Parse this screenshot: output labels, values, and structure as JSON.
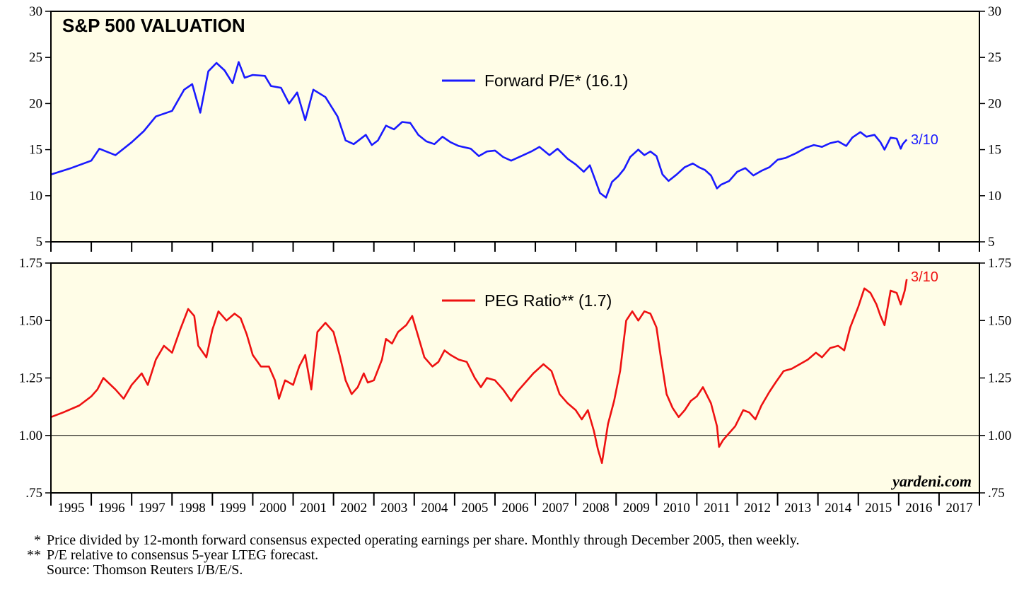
{
  "chart_data": [
    {
      "type": "line",
      "title": "S&P 500 VALUATION",
      "series": [
        {
          "name": "Forward P/E*",
          "legend": "Forward P/E* (16.1)",
          "color": "#1a1aff",
          "last_label": "3/10",
          "points": [
            [
              1995.0,
              12.3
            ],
            [
              1995.5,
              13.0
            ],
            [
              1996.0,
              13.8
            ],
            [
              1996.2,
              15.1
            ],
            [
              1996.6,
              14.4
            ],
            [
              1997.0,
              15.8
            ],
            [
              1997.3,
              17.0
            ],
            [
              1997.6,
              18.6
            ],
            [
              1998.0,
              19.2
            ],
            [
              1998.3,
              21.5
            ],
            [
              1998.5,
              22.1
            ],
            [
              1998.7,
              19.0
            ],
            [
              1998.9,
              23.5
            ],
            [
              1999.1,
              24.4
            ],
            [
              1999.3,
              23.6
            ],
            [
              1999.5,
              22.2
            ],
            [
              1999.65,
              24.5
            ],
            [
              1999.8,
              22.8
            ],
            [
              2000.0,
              23.1
            ],
            [
              2000.3,
              23.0
            ],
            [
              2000.45,
              21.9
            ],
            [
              2000.7,
              21.7
            ],
            [
              2000.9,
              20.0
            ],
            [
              2001.1,
              21.2
            ],
            [
              2001.3,
              18.2
            ],
            [
              2001.5,
              21.5
            ],
            [
              2001.8,
              20.7
            ],
            [
              2002.1,
              18.6
            ],
            [
              2002.3,
              16.0
            ],
            [
              2002.5,
              15.6
            ],
            [
              2002.8,
              16.6
            ],
            [
              2002.95,
              15.5
            ],
            [
              2003.1,
              16.0
            ],
            [
              2003.3,
              17.6
            ],
            [
              2003.5,
              17.2
            ],
            [
              2003.7,
              18.0
            ],
            [
              2003.9,
              17.9
            ],
            [
              2004.1,
              16.6
            ],
            [
              2004.3,
              15.9
            ],
            [
              2004.5,
              15.6
            ],
            [
              2004.7,
              16.4
            ],
            [
              2004.9,
              15.8
            ],
            [
              2005.1,
              15.4
            ],
            [
              2005.4,
              15.1
            ],
            [
              2005.6,
              14.3
            ],
            [
              2005.8,
              14.8
            ],
            [
              2006.0,
              14.9
            ],
            [
              2006.2,
              14.2
            ],
            [
              2006.4,
              13.8
            ],
            [
              2006.7,
              14.4
            ],
            [
              2006.9,
              14.8
            ],
            [
              2007.1,
              15.3
            ],
            [
              2007.35,
              14.4
            ],
            [
              2007.55,
              15.1
            ],
            [
              2007.8,
              14.0
            ],
            [
              2008.0,
              13.4
            ],
            [
              2008.2,
              12.6
            ],
            [
              2008.35,
              13.3
            ],
            [
              2008.5,
              11.5
            ],
            [
              2008.6,
              10.3
            ],
            [
              2008.75,
              9.8
            ],
            [
              2008.9,
              11.5
            ],
            [
              2009.05,
              12.1
            ],
            [
              2009.2,
              12.9
            ],
            [
              2009.35,
              14.2
            ],
            [
              2009.55,
              15.0
            ],
            [
              2009.7,
              14.4
            ],
            [
              2009.85,
              14.8
            ],
            [
              2010.0,
              14.3
            ],
            [
              2010.15,
              12.3
            ],
            [
              2010.3,
              11.6
            ],
            [
              2010.5,
              12.3
            ],
            [
              2010.7,
              13.1
            ],
            [
              2010.9,
              13.5
            ],
            [
              2011.05,
              13.1
            ],
            [
              2011.2,
              12.8
            ],
            [
              2011.35,
              12.2
            ],
            [
              2011.5,
              10.8
            ],
            [
              2011.6,
              11.2
            ],
            [
              2011.8,
              11.6
            ],
            [
              2012.0,
              12.6
            ],
            [
              2012.2,
              13.0
            ],
            [
              2012.4,
              12.2
            ],
            [
              2012.6,
              12.7
            ],
            [
              2012.8,
              13.1
            ],
            [
              2013.0,
              13.9
            ],
            [
              2013.2,
              14.1
            ],
            [
              2013.45,
              14.6
            ],
            [
              2013.7,
              15.2
            ],
            [
              2013.9,
              15.5
            ],
            [
              2014.1,
              15.3
            ],
            [
              2014.3,
              15.7
            ],
            [
              2014.5,
              15.9
            ],
            [
              2014.7,
              15.4
            ],
            [
              2014.85,
              16.3
            ],
            [
              2015.05,
              16.9
            ],
            [
              2015.2,
              16.4
            ],
            [
              2015.4,
              16.6
            ],
            [
              2015.55,
              15.8
            ],
            [
              2015.65,
              15.0
            ],
            [
              2015.8,
              16.3
            ],
            [
              2015.95,
              16.2
            ],
            [
              2016.05,
              15.1
            ],
            [
              2016.1,
              15.6
            ],
            [
              2016.2,
              16.1
            ]
          ]
        },
        {
          "name": "PEG Ratio**",
          "legend": "PEG Ratio** (1.7)",
          "color": "#ee1111",
          "last_label": "3/10",
          "points": [
            [
              1995.0,
              1.08
            ],
            [
              1995.3,
              1.1
            ],
            [
              1995.7,
              1.13
            ],
            [
              1996.0,
              1.17
            ],
            [
              1996.15,
              1.2
            ],
            [
              1996.3,
              1.25
            ],
            [
              1996.6,
              1.2
            ],
            [
              1996.8,
              1.16
            ],
            [
              1997.0,
              1.22
            ],
            [
              1997.25,
              1.27
            ],
            [
              1997.4,
              1.22
            ],
            [
              1997.6,
              1.33
            ],
            [
              1997.8,
              1.39
            ],
            [
              1998.0,
              1.36
            ],
            [
              1998.2,
              1.46
            ],
            [
              1998.4,
              1.55
            ],
            [
              1998.55,
              1.52
            ],
            [
              1998.65,
              1.39
            ],
            [
              1998.85,
              1.34
            ],
            [
              1999.0,
              1.46
            ],
            [
              1999.15,
              1.54
            ],
            [
              1999.35,
              1.5
            ],
            [
              1999.55,
              1.53
            ],
            [
              1999.7,
              1.51
            ],
            [
              1999.85,
              1.44
            ],
            [
              2000.0,
              1.35
            ],
            [
              2000.2,
              1.3
            ],
            [
              2000.4,
              1.3
            ],
            [
              2000.55,
              1.24
            ],
            [
              2000.65,
              1.16
            ],
            [
              2000.8,
              1.24
            ],
            [
              2001.0,
              1.22
            ],
            [
              2001.15,
              1.3
            ],
            [
              2001.3,
              1.35
            ],
            [
              2001.45,
              1.2
            ],
            [
              2001.6,
              1.45
            ],
            [
              2001.8,
              1.49
            ],
            [
              2002.0,
              1.45
            ],
            [
              2002.15,
              1.35
            ],
            [
              2002.3,
              1.24
            ],
            [
              2002.45,
              1.18
            ],
            [
              2002.6,
              1.21
            ],
            [
              2002.75,
              1.27
            ],
            [
              2002.85,
              1.23
            ],
            [
              2003.0,
              1.24
            ],
            [
              2003.2,
              1.33
            ],
            [
              2003.3,
              1.42
            ],
            [
              2003.45,
              1.4
            ],
            [
              2003.6,
              1.45
            ],
            [
              2003.8,
              1.48
            ],
            [
              2003.95,
              1.52
            ],
            [
              2004.1,
              1.43
            ],
            [
              2004.25,
              1.34
            ],
            [
              2004.45,
              1.3
            ],
            [
              2004.6,
              1.32
            ],
            [
              2004.75,
              1.37
            ],
            [
              2004.9,
              1.35
            ],
            [
              2005.1,
              1.33
            ],
            [
              2005.3,
              1.32
            ],
            [
              2005.5,
              1.25
            ],
            [
              2005.65,
              1.21
            ],
            [
              2005.8,
              1.25
            ],
            [
              2006.0,
              1.24
            ],
            [
              2006.2,
              1.2
            ],
            [
              2006.4,
              1.15
            ],
            [
              2006.55,
              1.19
            ],
            [
              2006.75,
              1.23
            ],
            [
              2006.95,
              1.27
            ],
            [
              2007.2,
              1.31
            ],
            [
              2007.4,
              1.28
            ],
            [
              2007.6,
              1.18
            ],
            [
              2007.8,
              1.14
            ],
            [
              2008.0,
              1.11
            ],
            [
              2008.15,
              1.07
            ],
            [
              2008.3,
              1.11
            ],
            [
              2008.45,
              1.02
            ],
            [
              2008.55,
              0.94
            ],
            [
              2008.65,
              0.88
            ],
            [
              2008.8,
              1.05
            ],
            [
              2008.95,
              1.15
            ],
            [
              2009.1,
              1.28
            ],
            [
              2009.25,
              1.5
            ],
            [
              2009.4,
              1.54
            ],
            [
              2009.55,
              1.5
            ],
            [
              2009.7,
              1.54
            ],
            [
              2009.85,
              1.53
            ],
            [
              2010.0,
              1.47
            ],
            [
              2010.1,
              1.35
            ],
            [
              2010.25,
              1.18
            ],
            [
              2010.4,
              1.12
            ],
            [
              2010.55,
              1.08
            ],
            [
              2010.7,
              1.11
            ],
            [
              2010.85,
              1.15
            ],
            [
              2011.0,
              1.17
            ],
            [
              2011.15,
              1.21
            ],
            [
              2011.35,
              1.14
            ],
            [
              2011.5,
              1.04
            ],
            [
              2011.55,
              0.95
            ],
            [
              2011.65,
              0.98
            ],
            [
              2011.8,
              1.01
            ],
            [
              2011.95,
              1.04
            ],
            [
              2012.15,
              1.11
            ],
            [
              2012.3,
              1.1
            ],
            [
              2012.45,
              1.07
            ],
            [
              2012.6,
              1.13
            ],
            [
              2012.8,
              1.19
            ],
            [
              2012.95,
              1.23
            ],
            [
              2013.15,
              1.28
            ],
            [
              2013.35,
              1.29
            ],
            [
              2013.55,
              1.31
            ],
            [
              2013.75,
              1.33
            ],
            [
              2013.95,
              1.36
            ],
            [
              2014.1,
              1.34
            ],
            [
              2014.3,
              1.38
            ],
            [
              2014.5,
              1.39
            ],
            [
              2014.65,
              1.37
            ],
            [
              2014.8,
              1.47
            ],
            [
              2015.0,
              1.56
            ],
            [
              2015.15,
              1.64
            ],
            [
              2015.3,
              1.62
            ],
            [
              2015.45,
              1.57
            ],
            [
              2015.55,
              1.52
            ],
            [
              2015.65,
              1.48
            ],
            [
              2015.8,
              1.63
            ],
            [
              2015.95,
              1.62
            ],
            [
              2016.05,
              1.57
            ],
            [
              2016.15,
              1.63
            ],
            [
              2016.2,
              1.68
            ]
          ]
        }
      ],
      "panels": [
        {
          "series": "Forward P/E*",
          "ylim": [
            5,
            30
          ],
          "yticks_left": [
            "30",
            "25",
            "20",
            "15",
            "10",
            "5"
          ],
          "yticks_right": [
            "30",
            "25",
            "20",
            "15",
            "10",
            "5"
          ],
          "yvalues": [
            30,
            25,
            20,
            15,
            10,
            5
          ]
        },
        {
          "series": "PEG Ratio**",
          "ylim": [
            0.75,
            1.75
          ],
          "yticks_left": [
            "1.75",
            "1.50",
            "1.25",
            "1.00",
            ".75"
          ],
          "yticks_right": [
            "1.75",
            "1.50",
            "1.25",
            "1.00",
            ".75"
          ],
          "yvalues": [
            1.75,
            1.5,
            1.25,
            1.0,
            0.75
          ],
          "reference_line": 1.0
        }
      ],
      "x_categories": [
        "1995",
        "1996",
        "1997",
        "1998",
        "1999",
        "2000",
        "2001",
        "2002",
        "2003",
        "2004",
        "2005",
        "2006",
        "2007",
        "2008",
        "2009",
        "2010",
        "2011",
        "2012",
        "2013",
        "2014",
        "2015",
        "2016",
        "2017"
      ],
      "xlim": [
        1995,
        2018
      ],
      "source_label": "yardeni.com",
      "background": "#fffde7"
    }
  ],
  "footnotes": [
    {
      "mark": "*",
      "text": "Price divided by 12-month forward consensus expected operating earnings per share. Monthly through December 2005, then weekly."
    },
    {
      "mark": "**",
      "text": "P/E relative to consensus 5-year LTEG forecast."
    },
    {
      "mark": "",
      "text": "Source: Thomson Reuters I/B/E/S."
    }
  ]
}
